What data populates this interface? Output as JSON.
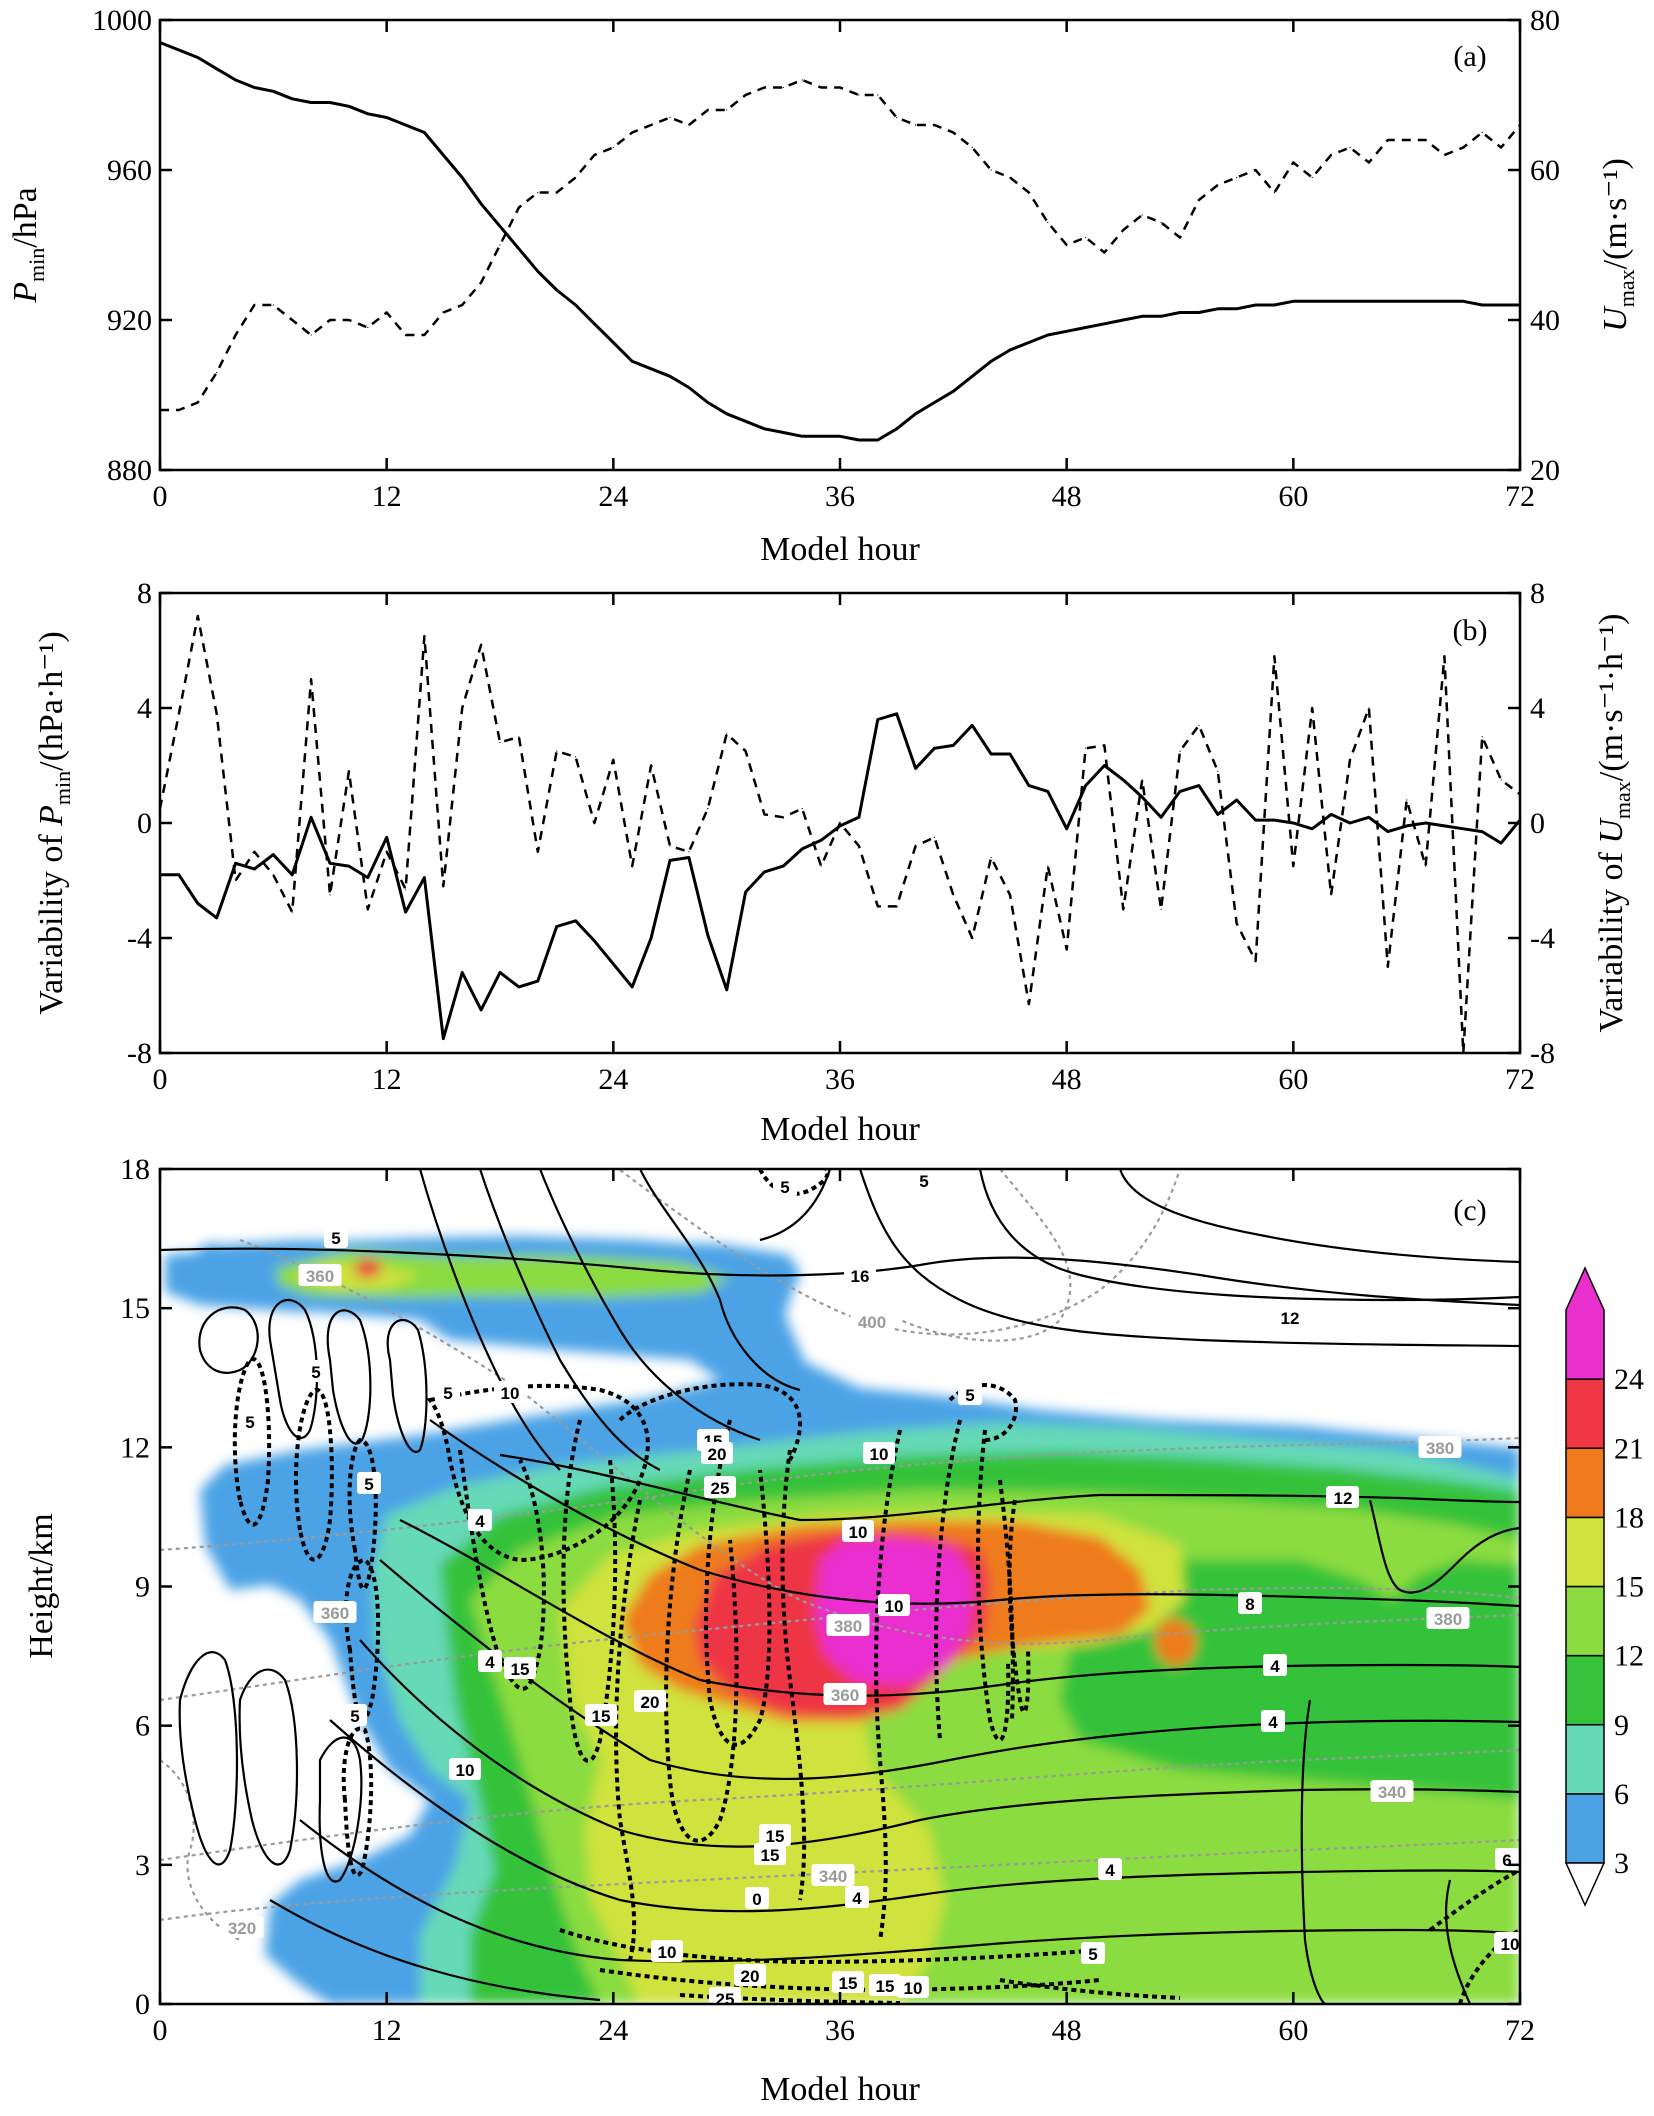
{
  "chart_data": [
    {
      "type": "line",
      "panel_label": "(a)",
      "xlabel": "Model hour",
      "ylabel_left": {
        "symbol": "P",
        "sub": "min",
        "unit": "/hPa"
      },
      "ylabel_right": {
        "symbol": "U",
        "sub": "max",
        "unit": "/(m·s⁻¹)"
      },
      "x_ticks": [
        "0",
        "12",
        "24",
        "36",
        "48",
        "60",
        "72"
      ],
      "yleft_ticks": [
        "880",
        "920",
        "960",
        "1000"
      ],
      "yright_ticks": [
        "20",
        "40",
        "60",
        "80"
      ],
      "xlim": [
        0,
        72
      ],
      "ylim_left": [
        880,
        1000
      ],
      "ylim_right": [
        20,
        80
      ],
      "series": [
        {
          "style": "solid",
          "axis": "left",
          "x": [
            0,
            1,
            2,
            3,
            4,
            5,
            6,
            7,
            8,
            9,
            10,
            11,
            12,
            13,
            14,
            15,
            16,
            17,
            18,
            19,
            20,
            21,
            22,
            23,
            24,
            25,
            26,
            27,
            28,
            29,
            30,
            31,
            32,
            33,
            34,
            35,
            36,
            37,
            38,
            39,
            40,
            41,
            42,
            43,
            44,
            45,
            46,
            47,
            48,
            49,
            50,
            51,
            52,
            53,
            54,
            55,
            56,
            57,
            58,
            59,
            60,
            61,
            62,
            63,
            64,
            65,
            66,
            67,
            68,
            69,
            70,
            71,
            72
          ],
          "values": [
            994,
            992,
            990,
            987,
            984,
            982,
            981,
            979,
            978,
            978,
            977,
            975,
            974,
            972,
            970,
            964,
            958,
            951,
            945,
            939,
            933,
            928,
            924,
            919,
            914,
            909,
            907,
            905,
            902,
            898,
            895,
            893,
            891,
            890,
            889,
            889,
            889,
            888,
            888,
            891,
            895,
            898,
            901,
            905,
            909,
            912,
            914,
            916,
            917,
            918,
            919,
            920,
            921,
            921,
            922,
            922,
            923,
            923,
            924,
            924,
            925,
            925,
            925,
            925,
            925,
            925,
            925,
            925,
            925,
            925,
            924,
            924,
            924
          ]
        },
        {
          "style": "dashed",
          "axis": "right",
          "x": [
            0,
            1,
            2,
            3,
            4,
            5,
            6,
            7,
            8,
            9,
            10,
            11,
            12,
            13,
            14,
            15,
            16,
            17,
            18,
            19,
            20,
            21,
            22,
            23,
            24,
            25,
            26,
            27,
            28,
            29,
            30,
            31,
            32,
            33,
            34,
            35,
            36,
            37,
            38,
            39,
            40,
            41,
            42,
            43,
            44,
            45,
            46,
            47,
            48,
            49,
            50,
            51,
            52,
            53,
            54,
            55,
            56,
            57,
            58,
            59,
            60,
            61,
            62,
            63,
            64,
            65,
            66,
            67,
            68,
            69,
            70,
            71,
            72
          ],
          "values": [
            28,
            28,
            29,
            33,
            38,
            42,
            42,
            40,
            38,
            40,
            40,
            39,
            41,
            38,
            38,
            41,
            42,
            45,
            50,
            55,
            57,
            57,
            59,
            62,
            63,
            65,
            66,
            67,
            66,
            68,
            68,
            70,
            71,
            71,
            72,
            71,
            71,
            70,
            70,
            67,
            66,
            66,
            65,
            63,
            60,
            59,
            57,
            53,
            50,
            51,
            49,
            52,
            54,
            53,
            51,
            56,
            58,
            59,
            60,
            57,
            61,
            59,
            62,
            63,
            61,
            64,
            64,
            64,
            62,
            63,
            65,
            63,
            66
          ]
        }
      ]
    },
    {
      "type": "line",
      "panel_label": "(b)",
      "xlabel": "Model hour",
      "ylabel_left": {
        "prefix": "Variability of ",
        "symbol": "P",
        "sub": "min",
        "unit": "/(hPa·h⁻¹)"
      },
      "ylabel_right": {
        "prefix": "Variability of  ",
        "symbol": "U",
        "sub": "max",
        "unit": "/(m·s⁻¹·h⁻¹)"
      },
      "x_ticks": [
        "0",
        "12",
        "24",
        "36",
        "48",
        "60",
        "72"
      ],
      "yleft_ticks": [
        "-8",
        "-4",
        "0",
        "4",
        "8"
      ],
      "yright_ticks": [
        "-8",
        "-4",
        "0",
        "4",
        "8"
      ],
      "xlim": [
        0,
        72
      ],
      "ylim_left": [
        -8,
        8
      ],
      "ylim_right": [
        -8,
        8
      ],
      "series": [
        {
          "style": "solid",
          "axis": "left",
          "x": [
            0,
            1,
            2,
            3,
            4,
            5,
            6,
            7,
            8,
            9,
            10,
            11,
            12,
            13,
            14,
            15,
            16,
            17,
            18,
            19,
            20,
            21,
            22,
            23,
            24,
            25,
            26,
            27,
            28,
            29,
            30,
            31,
            32,
            33,
            34,
            35,
            36,
            37,
            38,
            39,
            40,
            41,
            42,
            43,
            44,
            45,
            46,
            47,
            48,
            49,
            50,
            51,
            52,
            53,
            54,
            55,
            56,
            57,
            58,
            59,
            60,
            61,
            62,
            63,
            64,
            65,
            66,
            67,
            68,
            69,
            70,
            71,
            72
          ],
          "values": [
            -1.8,
            -1.8,
            -2.8,
            -3.3,
            -1.4,
            -1.6,
            -1.1,
            -1.8,
            0.2,
            -1.4,
            -1.5,
            -1.9,
            -0.5,
            -3.1,
            -1.9,
            -7.5,
            -5.2,
            -6.5,
            -5.2,
            -5.7,
            -5.5,
            -3.6,
            -3.4,
            -4.1,
            -4.9,
            -5.7,
            -4.0,
            -1.3,
            -1.2,
            -3.9,
            -5.8,
            -2.4,
            -1.7,
            -1.5,
            -0.9,
            -0.6,
            -0.1,
            0.2,
            3.6,
            3.8,
            1.9,
            2.6,
            2.7,
            3.4,
            2.4,
            2.4,
            1.3,
            1.1,
            -0.2,
            1.3,
            2.0,
            1.5,
            0.9,
            0.2,
            1.1,
            1.3,
            0.3,
            0.8,
            0.1,
            0.1,
            0.0,
            -0.2,
            0.3,
            0.0,
            0.2,
            -0.3,
            -0.1,
            0.0,
            -0.1,
            -0.2,
            -0.3,
            -0.7,
            0.1
          ]
        },
        {
          "style": "dashed",
          "axis": "right",
          "x": [
            0,
            1,
            2,
            3,
            4,
            5,
            6,
            7,
            8,
            9,
            10,
            11,
            12,
            13,
            14,
            15,
            16,
            17,
            18,
            19,
            20,
            21,
            22,
            23,
            24,
            25,
            26,
            27,
            28,
            29,
            30,
            31,
            32,
            33,
            34,
            35,
            36,
            37,
            38,
            39,
            40,
            41,
            42,
            43,
            44,
            45,
            46,
            47,
            48,
            49,
            50,
            51,
            52,
            53,
            54,
            55,
            56,
            57,
            58,
            59,
            60,
            61,
            62,
            63,
            64,
            65,
            66,
            67,
            68,
            69,
            70,
            71,
            72
          ],
          "values": [
            0.5,
            3.8,
            7.2,
            3.8,
            -2.0,
            -1.0,
            -1.8,
            -3.1,
            5.0,
            -2.5,
            1.8,
            -3.0,
            -1.0,
            -2.3,
            6.5,
            -2.2,
            4.0,
            6.2,
            2.8,
            3.0,
            -1.0,
            2.5,
            2.3,
            0.0,
            2.2,
            -1.5,
            2.0,
            -0.8,
            -1.0,
            0.5,
            3.1,
            2.5,
            0.3,
            0.2,
            0.5,
            -1.5,
            0.0,
            -0.8,
            -2.9,
            -2.9,
            -0.8,
            -0.5,
            -2.5,
            -4.0,
            -1.2,
            -2.5,
            -6.3,
            -1.5,
            -4.4,
            2.6,
            2.7,
            -3.0,
            1.5,
            -3.0,
            2.5,
            3.4,
            1.8,
            -3.5,
            -4.8,
            5.8,
            -1.5,
            4.0,
            -2.5,
            2.2,
            4.0,
            -5.0,
            0.8,
            -1.5,
            5.8,
            -8.0,
            3.0,
            1.5,
            1.0
          ]
        }
      ]
    },
    {
      "type": "heatmap",
      "panel_label": "(c)",
      "xlabel": "Model hour",
      "ylabel": "Height/km",
      "x_ticks": [
        "0",
        "12",
        "24",
        "36",
        "48",
        "60",
        "72"
      ],
      "y_ticks": [
        "0",
        "3",
        "6",
        "9",
        "12",
        "15",
        "18"
      ],
      "xlim": [
        0,
        72
      ],
      "ylim": [
        0,
        18
      ],
      "colorbar": {
        "levels": [
          "3",
          "6",
          "9",
          "12",
          "15",
          "18",
          "21",
          "24"
        ],
        "colors": [
          "#4ba3e6",
          "#66d9b7",
          "#36c23a",
          "#8bdc40",
          "#cfe23e",
          "#ef7b1c",
          "#ee3645",
          "#ea2fcf"
        ],
        "extend": "both"
      },
      "contour_labels_solid": [
        "16",
        "12",
        "12",
        "12",
        "10",
        "8",
        "4",
        "4",
        "4",
        "4",
        "10",
        "4",
        "0",
        "4",
        "6",
        "10",
        "10",
        "15"
      ],
      "contour_labels_dashed": [
        "5",
        "5",
        "5",
        "5",
        "5",
        "5",
        "5",
        "5",
        "5",
        "10",
        "10",
        "15",
        "15",
        "15",
        "15",
        "20",
        "20",
        "25",
        "15",
        "10",
        "20",
        "15",
        "10",
        "5",
        "25"
      ],
      "contour_labels_gray": [
        "360",
        "400",
        "380",
        "380",
        "380",
        "360",
        "360",
        "340",
        "340",
        "320"
      ]
    }
  ]
}
